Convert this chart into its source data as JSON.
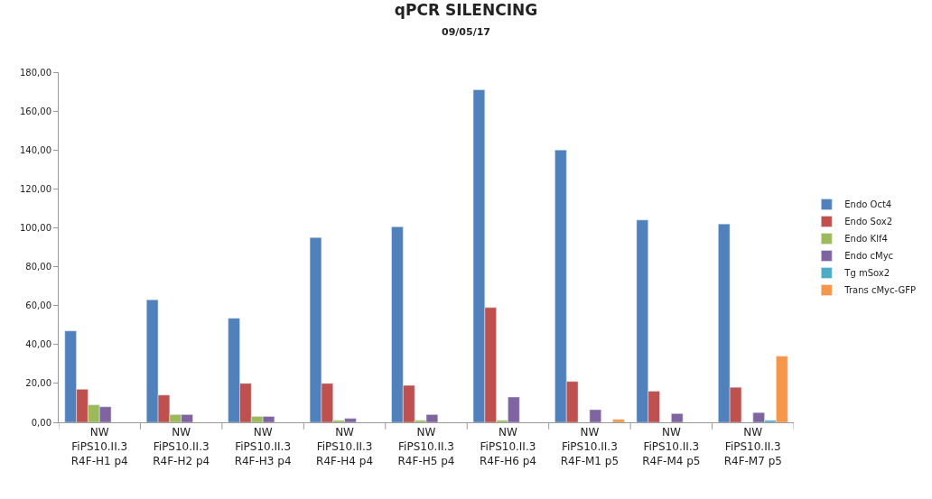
{
  "chart_data": {
    "type": "bar",
    "title": "qPCR SILENCING",
    "subtitle": "09/05/17",
    "categories": [
      "NW\nFiPS10.II.3\nR4F-H1 p4",
      "NW\nFiPS10.II.3\nR4F-H2 p4",
      "NW\nFiPS10.II.3\nR4F-H3 p4",
      "NW\nFiPS10.II.3\nR4F-H4 p4",
      "NW\nFiPS10.II.3\nR4F-H5 p4",
      "NW\nFiPS10.II.3\nR4F-H6 p4",
      "NW\nFiPS10.II.3\nR4F-M1 p5",
      "NW\nFiPS10.II.3\nR4F-M4 p5",
      "NW\nFiPS10.II.3\nR4F-M7 p5"
    ],
    "series": [
      {
        "name": "Endo Oct4",
        "color": "#4f81bd",
        "values": [
          47,
          63,
          53.5,
          95,
          100.5,
          171,
          140,
          104,
          102
        ]
      },
      {
        "name": "Endo Sox2",
        "color": "#c0504d",
        "values": [
          17,
          14,
          20,
          20,
          19,
          59,
          21,
          16,
          18
        ]
      },
      {
        "name": "Endo Klf4",
        "color": "#9bbb59",
        "values": [
          9,
          4,
          3,
          1,
          1,
          1,
          null,
          null,
          null
        ]
      },
      {
        "name": "Endo cMyc",
        "color": "#8064a2",
        "values": [
          8,
          4,
          3,
          2,
          4,
          13,
          6.5,
          4.5,
          5
        ]
      },
      {
        "name": "Tg mSox2",
        "color": "#4bacc6",
        "values": [
          null,
          null,
          null,
          null,
          null,
          null,
          null,
          null,
          1
        ]
      },
      {
        "name": "Trans cMyc-GFP",
        "color": "#f79646",
        "values": [
          null,
          null,
          null,
          null,
          null,
          null,
          1.5,
          null,
          34
        ]
      }
    ],
    "ylim": [
      0,
      180
    ],
    "yticks": [
      {
        "value": 0,
        "label": "0,00"
      },
      {
        "value": 20,
        "label": "20,00"
      },
      {
        "value": 40,
        "label": "40,00"
      },
      {
        "value": 60,
        "label": "60,00"
      },
      {
        "value": 80,
        "label": "80,00"
      },
      {
        "value": 100,
        "label": "100,00"
      },
      {
        "value": 120,
        "label": "120,00"
      },
      {
        "value": 140,
        "label": "140,00"
      },
      {
        "value": 160,
        "label": "160,00"
      },
      {
        "value": 180,
        "label": "180,00"
      }
    ],
    "legend": "right"
  }
}
